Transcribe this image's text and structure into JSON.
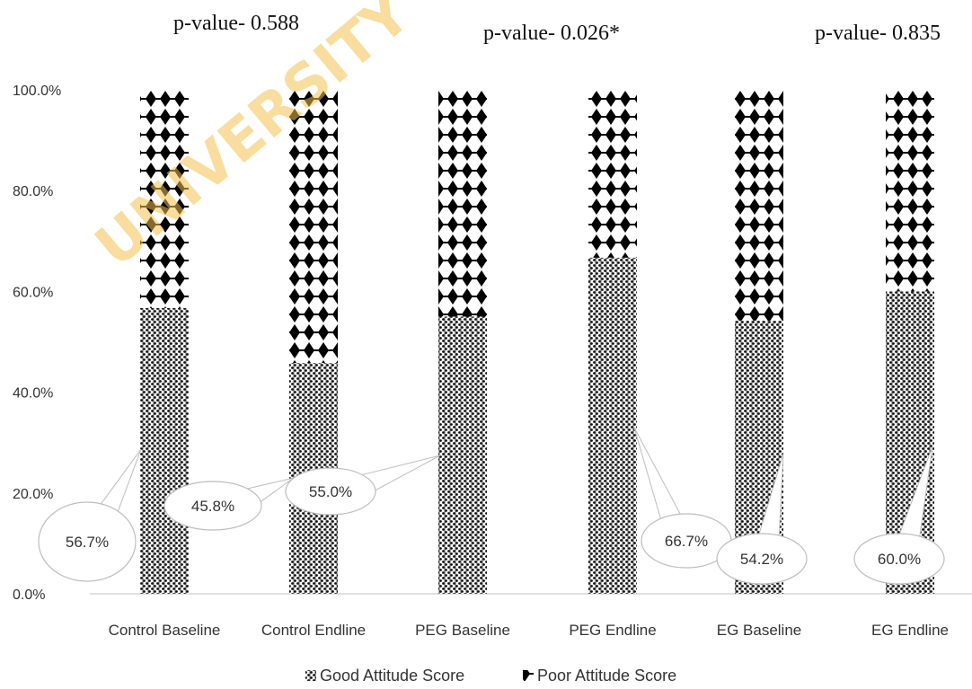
{
  "watermark": "UNIVERSITY O",
  "chart_data": {
    "type": "bar",
    "stacked": true,
    "percent": true,
    "categories": [
      "Control Baseline",
      "Control Endline",
      "PEG Baseline",
      "PEG Endline",
      "EG Baseline",
      "EG Endline"
    ],
    "series": [
      {
        "name": "Good Attitude Score",
        "values": [
          56.7,
          45.8,
          55.0,
          66.7,
          54.2,
          60.0
        ],
        "pattern": "dense-dots",
        "color": "#111111"
      },
      {
        "name": "Poor Attitude Score",
        "values": [
          43.3,
          54.2,
          45.0,
          33.3,
          45.8,
          40.0
        ],
        "pattern": "diamonds",
        "color": "#111111"
      }
    ],
    "data_labels": [
      "56.7%",
      "45.8%",
      "55.0%",
      "66.7%",
      "54.2%",
      "60.0%"
    ],
    "annotations": [
      "p-value- 0.588",
      "p-value- 0.026*",
      "p-value- 0.835"
    ],
    "yticks": [
      "0.0%",
      "20.0%",
      "40.0%",
      "60.0%",
      "80.0%",
      "100.0%"
    ],
    "ylim": [
      0,
      100
    ],
    "grid": false,
    "legend": "bottom"
  }
}
